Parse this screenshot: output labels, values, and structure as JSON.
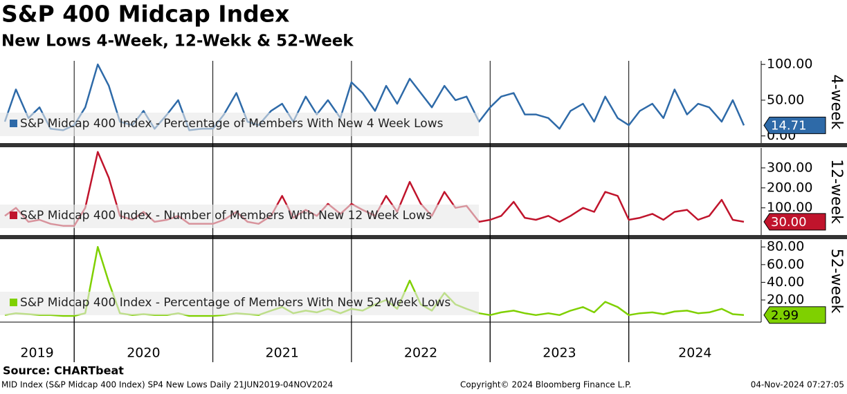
{
  "title": "S&P 400 Midcap Index",
  "subtitle": "New Lows 4-Week, 12-Wekk & 52-Week",
  "source": "Source: CHARTbeat",
  "footer": {
    "left": "MID Index (S&P Midcap 400 Index) SP4 New Lows  Daily 21JUN2019-04NOV2024",
    "center": "Copyright© 2024 Bloomberg Finance L.P.",
    "right": "04-Nov-2024 07:27:05"
  },
  "year_labels": [
    "2019",
    "2020",
    "2021",
    "2022",
    "2023",
    "2024"
  ],
  "chart_data": [
    {
      "type": "line",
      "ylabel": "4-week",
      "xlim": [
        2019.465,
        2024.955
      ],
      "xticks": [
        2020,
        2021,
        2022,
        2023,
        2024
      ],
      "ylim": [
        -10,
        105
      ],
      "yticks": [
        {
          "value": 0,
          "label": "0.00"
        },
        {
          "value": 50,
          "label": "50.00"
        },
        {
          "value": 100,
          "label": "100.00"
        }
      ],
      "x": [
        2019.5,
        2019.58,
        2019.67,
        2019.75,
        2019.83,
        2019.92,
        2020,
        2020.08,
        2020.17,
        2020.25,
        2020.33,
        2020.42,
        2020.5,
        2020.58,
        2020.67,
        2020.75,
        2020.83,
        2020.92,
        2021,
        2021.08,
        2021.17,
        2021.25,
        2021.33,
        2021.42,
        2021.5,
        2021.58,
        2021.67,
        2021.75,
        2021.83,
        2021.92,
        2022,
        2022.08,
        2022.17,
        2022.25,
        2022.33,
        2022.42,
        2022.5,
        2022.58,
        2022.67,
        2022.75,
        2022.83,
        2022.92,
        2023,
        2023.08,
        2023.17,
        2023.25,
        2023.33,
        2023.42,
        2023.5,
        2023.58,
        2023.67,
        2023.75,
        2023.83,
        2023.92,
        2024,
        2024.08,
        2024.17,
        2024.25,
        2024.33,
        2024.42,
        2024.5,
        2024.58,
        2024.67,
        2024.75,
        2024.83
      ],
      "series": [
        {
          "name": "S&P Midcap 400 Index - Percentage of Members With New 4 Week Lows",
          "color": "#2e6aa8",
          "values": [
            20,
            65,
            25,
            40,
            10,
            8,
            15,
            40,
            100,
            70,
            20,
            15,
            35,
            10,
            30,
            50,
            8,
            10,
            10,
            30,
            60,
            20,
            15,
            35,
            45,
            20,
            55,
            30,
            50,
            25,
            75,
            60,
            35,
            70,
            45,
            80,
            60,
            40,
            70,
            50,
            55,
            20,
            40,
            55,
            60,
            30,
            30,
            25,
            10,
            35,
            45,
            20,
            55,
            25,
            15,
            35,
            45,
            25,
            65,
            30,
            45,
            40,
            20,
            50,
            14.71
          ],
          "value_labels": [
            null,
            null,
            null,
            null,
            null,
            null,
            null,
            null,
            null,
            null,
            null,
            null,
            null,
            null,
            null,
            null,
            null,
            null,
            null,
            null,
            null,
            null,
            null,
            null,
            null,
            null,
            null,
            null,
            null,
            null,
            null,
            null,
            null,
            null,
            null,
            null,
            null,
            null,
            null,
            null,
            null,
            null,
            null,
            null,
            null,
            null,
            null,
            null,
            null,
            null,
            null,
            null,
            null,
            null,
            null,
            null,
            null,
            null,
            null,
            null,
            null,
            null,
            null,
            null,
            "14.71"
          ]
        }
      ]
    },
    {
      "type": "line",
      "ylabel": "12-week",
      "xlim": [
        2019.465,
        2024.955
      ],
      "xticks": [
        2020,
        2021,
        2022,
        2023,
        2024
      ],
      "ylim": [
        -36,
        400
      ],
      "yticks": [
        {
          "value": 100,
          "label": "100.00"
        },
        {
          "value": 200,
          "label": "200.00"
        },
        {
          "value": 300,
          "label": "300.00"
        }
      ],
      "x": [
        2019.5,
        2019.58,
        2019.67,
        2019.75,
        2019.83,
        2019.92,
        2020,
        2020.08,
        2020.17,
        2020.25,
        2020.33,
        2020.42,
        2020.5,
        2020.58,
        2020.67,
        2020.75,
        2020.83,
        2020.92,
        2021,
        2021.08,
        2021.17,
        2021.25,
        2021.33,
        2021.42,
        2021.5,
        2021.58,
        2021.67,
        2021.75,
        2021.83,
        2021.92,
        2022,
        2022.08,
        2022.17,
        2022.25,
        2022.33,
        2022.42,
        2022.5,
        2022.58,
        2022.67,
        2022.75,
        2022.83,
        2022.92,
        2023,
        2023.08,
        2023.17,
        2023.25,
        2023.33,
        2023.42,
        2023.5,
        2023.58,
        2023.67,
        2023.75,
        2023.83,
        2023.92,
        2024,
        2024.08,
        2024.17,
        2024.25,
        2024.33,
        2024.42,
        2024.5,
        2024.58,
        2024.67,
        2024.75,
        2024.83
      ],
      "series": [
        {
          "name": "S&P Midcap 400 Index - Number of Members With New 12 Week Lows",
          "color": "#c0142c",
          "values": [
            60,
            100,
            30,
            40,
            20,
            10,
            10,
            100,
            380,
            250,
            60,
            40,
            80,
            30,
            40,
            60,
            20,
            20,
            20,
            40,
            80,
            30,
            20,
            60,
            160,
            50,
            90,
            60,
            120,
            70,
            120,
            90,
            60,
            160,
            80,
            230,
            120,
            60,
            180,
            100,
            110,
            30,
            40,
            60,
            130,
            50,
            40,
            60,
            30,
            60,
            100,
            80,
            180,
            160,
            40,
            50,
            70,
            40,
            80,
            90,
            40,
            60,
            140,
            40,
            30
          ],
          "value_labels": [
            null,
            null,
            null,
            null,
            null,
            null,
            null,
            null,
            null,
            null,
            null,
            null,
            null,
            null,
            null,
            null,
            null,
            null,
            null,
            null,
            null,
            null,
            null,
            null,
            null,
            null,
            null,
            null,
            null,
            null,
            null,
            null,
            null,
            null,
            null,
            null,
            null,
            null,
            null,
            null,
            null,
            null,
            null,
            null,
            null,
            null,
            null,
            null,
            null,
            null,
            null,
            null,
            null,
            null,
            null,
            null,
            null,
            null,
            null,
            null,
            null,
            null,
            null,
            null,
            "30.00"
          ]
        }
      ]
    },
    {
      "type": "line",
      "ylabel": "52-week",
      "xlim": [
        2019.465,
        2024.955
      ],
      "xticks": [
        2020,
        2021,
        2022,
        2023,
        2024
      ],
      "ylim": [
        -5,
        88
      ],
      "yticks": [
        {
          "value": 20,
          "label": "20.00"
        },
        {
          "value": 40,
          "label": "40.00"
        },
        {
          "value": 60,
          "label": "60.00"
        },
        {
          "value": 80,
          "label": "80.00"
        }
      ],
      "x": [
        2019.5,
        2019.58,
        2019.67,
        2019.75,
        2019.83,
        2019.92,
        2020,
        2020.08,
        2020.17,
        2020.25,
        2020.33,
        2020.42,
        2020.5,
        2020.58,
        2020.67,
        2020.75,
        2020.83,
        2020.92,
        2021,
        2021.08,
        2021.17,
        2021.25,
        2021.33,
        2021.42,
        2021.5,
        2021.58,
        2021.67,
        2021.75,
        2021.83,
        2021.92,
        2022,
        2022.08,
        2022.17,
        2022.25,
        2022.33,
        2022.42,
        2022.5,
        2022.58,
        2022.67,
        2022.75,
        2022.83,
        2022.92,
        2023,
        2023.08,
        2023.17,
        2023.25,
        2023.33,
        2023.42,
        2023.5,
        2023.58,
        2023.67,
        2023.75,
        2023.83,
        2023.92,
        2024,
        2024.08,
        2024.17,
        2024.25,
        2024.33,
        2024.42,
        2024.5,
        2024.58,
        2024.67,
        2024.75,
        2024.83
      ],
      "series": [
        {
          "name": "S&P Midcap 400 Index - Percentage of Members With New 52 Week Lows",
          "color": "#7fd000",
          "values": [
            3,
            5,
            4,
            3,
            3,
            2,
            2,
            5,
            80,
            40,
            5,
            3,
            4,
            3,
            3,
            5,
            2,
            2,
            2,
            3,
            5,
            4,
            3,
            8,
            12,
            5,
            8,
            6,
            10,
            5,
            10,
            8,
            15,
            20,
            10,
            42,
            15,
            8,
            28,
            15,
            10,
            5,
            3,
            6,
            8,
            5,
            3,
            5,
            3,
            8,
            12,
            6,
            18,
            12,
            3,
            5,
            6,
            4,
            7,
            8,
            5,
            6,
            10,
            4,
            2.99
          ],
          "value_labels": [
            null,
            null,
            null,
            null,
            null,
            null,
            null,
            null,
            null,
            null,
            null,
            null,
            null,
            null,
            null,
            null,
            null,
            null,
            null,
            null,
            null,
            null,
            null,
            null,
            null,
            null,
            null,
            null,
            null,
            null,
            null,
            null,
            null,
            null,
            null,
            null,
            null,
            null,
            null,
            null,
            null,
            null,
            null,
            null,
            null,
            null,
            null,
            null,
            null,
            null,
            null,
            null,
            null,
            null,
            null,
            null,
            null,
            null,
            null,
            null,
            null,
            null,
            null,
            null,
            "2.99"
          ]
        }
      ]
    }
  ]
}
